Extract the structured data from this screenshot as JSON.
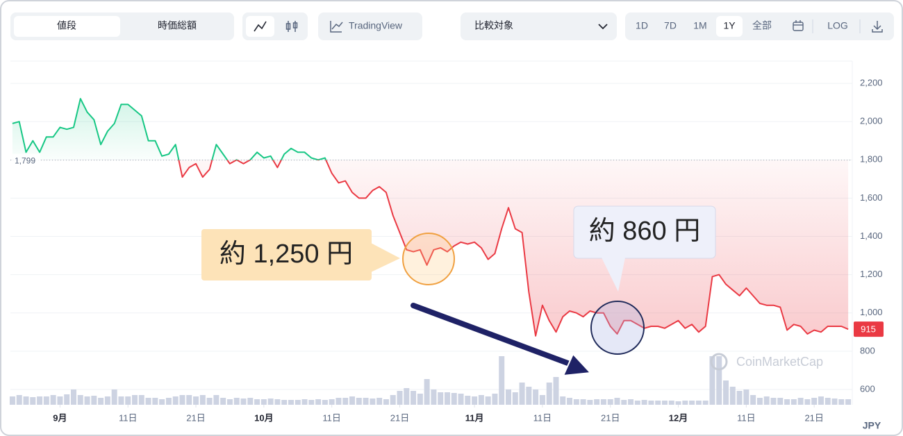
{
  "toolbar": {
    "tabs": [
      "値段",
      "時価総額"
    ],
    "tradingview": "TradingView",
    "compare": "比較対象",
    "ranges": [
      "1D",
      "7D",
      "1M",
      "1Y",
      "全部"
    ],
    "active_range": "1Y",
    "log": "LOG"
  },
  "chart_data": {
    "type": "line",
    "values": [
      1990,
      2000,
      1840,
      1900,
      1840,
      1920,
      1920,
      1970,
      1960,
      1970,
      2120,
      2050,
      2010,
      1880,
      1950,
      1990,
      2090,
      2090,
      2060,
      2030,
      1900,
      1900,
      1820,
      1830,
      1880,
      1710,
      1760,
      1780,
      1710,
      1750,
      1880,
      1830,
      1780,
      1800,
      1780,
      1800,
      1840,
      1810,
      1820,
      1760,
      1830,
      1860,
      1840,
      1840,
      1810,
      1800,
      1810,
      1730,
      1680,
      1690,
      1630,
      1600,
      1600,
      1640,
      1660,
      1630,
      1510,
      1420,
      1330,
      1320,
      1330,
      1250,
      1330,
      1340,
      1320,
      1350,
      1370,
      1360,
      1370,
      1340,
      1280,
      1310,
      1440,
      1550,
      1440,
      1420,
      1110,
      880,
      1040,
      960,
      900,
      980,
      1010,
      1000,
      980,
      1010,
      1000,
      1000,
      930,
      890,
      960,
      960,
      940,
      920,
      930,
      930,
      920,
      940,
      960,
      920,
      940,
      900,
      930,
      1190,
      1200,
      1150,
      1120,
      1090,
      1130,
      1090,
      1050,
      1040,
      1040,
      1030,
      910,
      940,
      930,
      890,
      910,
      900,
      930,
      930,
      930,
      915
    ],
    "color_up": "#16c784",
    "color_down": "#ea3943",
    "baseline": {
      "value": 1799,
      "label": "1,799"
    },
    "volume": [
      12,
      14,
      12,
      11,
      12,
      12,
      14,
      12,
      15,
      22,
      14,
      12,
      13,
      10,
      12,
      22,
      12,
      12,
      14,
      14,
      10,
      10,
      8,
      10,
      12,
      14,
      14,
      12,
      14,
      10,
      14,
      10,
      8,
      10,
      9,
      10,
      8,
      8,
      9,
      8,
      7,
      7,
      7,
      8,
      7,
      8,
      7,
      8,
      10,
      10,
      12,
      10,
      10,
      9,
      10,
      8,
      14,
      20,
      24,
      20,
      16,
      37,
      22,
      18,
      18,
      17,
      16,
      13,
      12,
      14,
      12,
      16,
      70,
      22,
      18,
      32,
      26,
      22,
      14,
      32,
      40,
      12,
      10,
      8,
      8,
      7,
      8,
      8,
      8,
      10,
      7,
      8,
      6,
      7,
      6,
      6,
      6,
      6,
      5,
      6,
      6,
      6,
      6,
      70,
      70,
      35,
      26,
      20,
      22,
      14,
      10,
      12,
      10,
      10,
      8,
      8,
      10,
      8,
      10,
      12,
      10,
      9,
      8,
      8
    ],
    "volume_lim": [
      0,
      100
    ],
    "volume_color": "#cdd3e2",
    "ylim": [
      520,
      2320
    ],
    "yticks": [
      600,
      800,
      {
        "value": 1000,
        "label": "1,000"
      },
      {
        "value": 1200,
        "label": "1,200"
      },
      {
        "value": 1400,
        "label": "1,400"
      },
      {
        "value": 1600,
        "label": "1,600"
      },
      {
        "value": 1800,
        "label": "1,800"
      },
      {
        "value": 2000,
        "label": "2,000"
      },
      {
        "value": 2200,
        "label": "2,200"
      }
    ],
    "xlim": [
      -0.3,
      123.4
    ],
    "xticks": [
      {
        "value": 7,
        "label": "9月"
      },
      {
        "value": 17,
        "label": "11日"
      },
      {
        "value": 27,
        "label": "21日"
      },
      {
        "value": 37,
        "label": "10月"
      },
      {
        "value": 47,
        "label": "11日"
      },
      {
        "value": 57,
        "label": "21日"
      },
      {
        "value": 68,
        "label": "11月"
      },
      {
        "value": 78,
        "label": "11日"
      },
      {
        "value": 88,
        "label": "21日"
      },
      {
        "value": 98,
        "label": "12月"
      },
      {
        "value": 108,
        "label": "11日"
      },
      {
        "value": 118,
        "label": "21日"
      }
    ],
    "grid": true,
    "currency": "JPY",
    "watermark": "CoinMarketCap",
    "annotations": [
      "約 1,250 円",
      "約 860 円"
    ]
  }
}
